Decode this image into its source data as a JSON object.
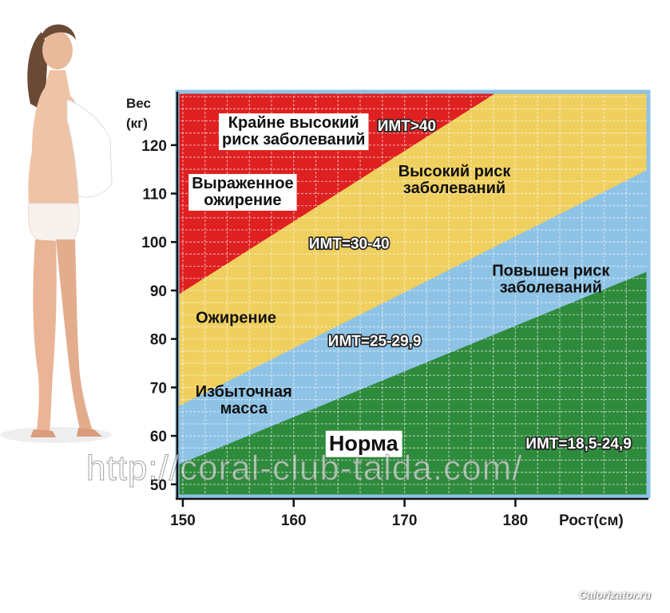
{
  "chart_data": {
    "type": "area",
    "xlabel": "Рост(см)",
    "ylabel_line1": "Вес",
    "ylabel_line2": "(кг)",
    "xlim": [
      149.5,
      192
    ],
    "ylim": [
      47.5,
      131
    ],
    "x_ticks": [
      150,
      160,
      170,
      180
    ],
    "y_ticks": [
      50,
      60,
      70,
      80,
      90,
      100,
      110,
      120
    ],
    "grid": true,
    "zones": [
      {
        "name": "Норма",
        "bmi_range": "ИМТ=18,5-24,9",
        "color": "#2e8b3c",
        "upper_boundary": [
          [
            149.5,
            54
          ],
          [
            192,
            94
          ]
        ]
      },
      {
        "name": "Избыточная масса",
        "bmi_range": "ИМТ=25-29,9",
        "color": "#8ec3e6",
        "upper_boundary": [
          [
            149.5,
            66
          ],
          [
            192,
            115
          ]
        ]
      },
      {
        "name": "Ожирение",
        "bmi_range": "ИМТ=30-40",
        "color": "#efcf5e",
        "upper_boundary": [
          [
            149.5,
            89
          ],
          [
            178.4,
            131
          ]
        ]
      },
      {
        "name": "Выраженное ожирение",
        "bmi_range": "ИМТ>40",
        "color": "#de2020",
        "upper_boundary": null
      }
    ],
    "annotations": [
      {
        "lines": [
          "Крайне высокий",
          "риск заболеваний"
        ],
        "x": 160,
        "y": 123,
        "boxed": true
      },
      {
        "lines": [
          "ИМТ>40"
        ],
        "x": 170.2,
        "y": 124,
        "bmi": true
      },
      {
        "lines": [
          "Выраженное",
          "ожирение"
        ],
        "x": 155.4,
        "y": 110.5,
        "boxed": true
      },
      {
        "lines": [
          "Высокий риск",
          "заболеваний"
        ],
        "x": 174.5,
        "y": 113,
        "boxed": false
      },
      {
        "lines": [
          "ИМТ=30-40"
        ],
        "x": 165,
        "y": 99.7,
        "bmi": true
      },
      {
        "lines": [
          "Повышен риск",
          "заболеваний"
        ],
        "x": 183.2,
        "y": 92.5,
        "boxed": false
      },
      {
        "lines": [
          "Ожирение"
        ],
        "x": 154.8,
        "y": 84.5,
        "boxed": false
      },
      {
        "lines": [
          "ИМТ=25-29,9"
        ],
        "x": 167.3,
        "y": 79.6,
        "bmi": true
      },
      {
        "lines": [
          "Избыточная",
          "масса"
        ],
        "x": 155.5,
        "y": 67.5,
        "boxed": false
      },
      {
        "lines": [
          "Норма"
        ],
        "x": 166.3,
        "y": 58.5,
        "boxed": true,
        "large": true
      },
      {
        "lines": [
          "ИМТ=18,5-24,9"
        ],
        "x": 185.7,
        "y": 58.5,
        "bmi": true
      }
    ]
  },
  "watermark": "http://coral-club-talda.com/",
  "credit": "Calorizator.ru"
}
